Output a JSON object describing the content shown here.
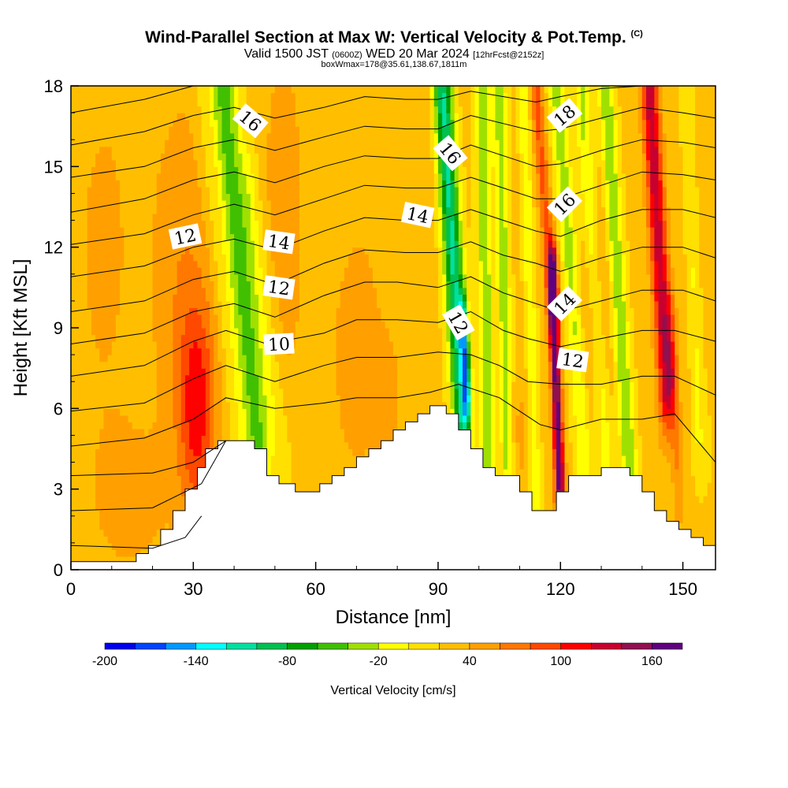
{
  "chart_data": {
    "type": "heatmap",
    "title": "Wind-Parallel Section at Max W: Vertical Velocity & Pot.Temp.",
    "title_mark": "(C)",
    "subtitle_main": "Valid 1500 JST",
    "subtitle_utc": "(0600Z)",
    "subtitle_date": "WED 20 Mar 2024",
    "subtitle_fcst": "[12hrFcst@2152z]",
    "boxline": "boxWmax=178@35.61,138.67,1811m",
    "xlabel": "Distance [nm]",
    "ylabel": "Height [Kft MSL]",
    "xlim": [
      0,
      158
    ],
    "ylim": [
      0,
      18
    ],
    "xticks": [
      0,
      30,
      60,
      90,
      120,
      150
    ],
    "yticks": [
      0,
      3,
      6,
      9,
      12,
      15,
      18
    ],
    "colorbar": {
      "label": "Vertical Velocity [cm/s]",
      "min": -200,
      "max": 180,
      "step": 20,
      "tick_values": [
        -200,
        -140,
        -80,
        -20,
        40,
        100,
        160
      ],
      "colors": [
        "#0000ee",
        "#0044ff",
        "#0099ff",
        "#00ffff",
        "#00e0a0",
        "#00c050",
        "#00a000",
        "#40c000",
        "#a0e000",
        "#ffff00",
        "#ffe000",
        "#ffbf00",
        "#ffa000",
        "#ff7800",
        "#ff4800",
        "#ff0000",
        "#c80030",
        "#901050",
        "#600080"
      ]
    },
    "terrain": [
      [
        0,
        0.3
      ],
      [
        16,
        0.3
      ],
      [
        16,
        0.6
      ],
      [
        19,
        0.6
      ],
      [
        19,
        0.9
      ],
      [
        22,
        0.9
      ],
      [
        22,
        1.5
      ],
      [
        25,
        1.5
      ],
      [
        25,
        2.2
      ],
      [
        28,
        2.2
      ],
      [
        28,
        3.0
      ],
      [
        31,
        3.0
      ],
      [
        31,
        3.8
      ],
      [
        33,
        3.8
      ],
      [
        33,
        4.5
      ],
      [
        36,
        4.5
      ],
      [
        36,
        4.8
      ],
      [
        45,
        4.8
      ],
      [
        45,
        4.5
      ],
      [
        48,
        4.5
      ],
      [
        48,
        3.5
      ],
      [
        51,
        3.5
      ],
      [
        51,
        3.2
      ],
      [
        55,
        3.2
      ],
      [
        55,
        2.9
      ],
      [
        61,
        2.9
      ],
      [
        61,
        3.2
      ],
      [
        64,
        3.2
      ],
      [
        64,
        3.5
      ],
      [
        67,
        3.5
      ],
      [
        67,
        3.8
      ],
      [
        70,
        3.8
      ],
      [
        70,
        4.2
      ],
      [
        73,
        4.2
      ],
      [
        73,
        4.5
      ],
      [
        76,
        4.5
      ],
      [
        76,
        4.8
      ],
      [
        79,
        4.8
      ],
      [
        79,
        5.2
      ],
      [
        82,
        5.2
      ],
      [
        82,
        5.5
      ],
      [
        85,
        5.5
      ],
      [
        85,
        5.8
      ],
      [
        88,
        5.8
      ],
      [
        88,
        6.1
      ],
      [
        92,
        6.1
      ],
      [
        92,
        5.8
      ],
      [
        95,
        5.8
      ],
      [
        95,
        5.2
      ],
      [
        98,
        5.2
      ],
      [
        98,
        4.5
      ],
      [
        101,
        4.5
      ],
      [
        101,
        3.8
      ],
      [
        104,
        3.8
      ],
      [
        104,
        3.5
      ],
      [
        110,
        3.5
      ],
      [
        110,
        2.9
      ],
      [
        113,
        2.9
      ],
      [
        113,
        2.2
      ],
      [
        119,
        2.2
      ],
      [
        119,
        2.9
      ],
      [
        122,
        2.9
      ],
      [
        122,
        3.5
      ],
      [
        130,
        3.5
      ],
      [
        130,
        3.8
      ],
      [
        137,
        3.8
      ],
      [
        137,
        3.5
      ],
      [
        140,
        3.5
      ],
      [
        140,
        2.9
      ],
      [
        143,
        2.9
      ],
      [
        143,
        2.2
      ],
      [
        146,
        2.2
      ],
      [
        146,
        1.8
      ],
      [
        149,
        1.8
      ],
      [
        149,
        1.5
      ],
      [
        152,
        1.5
      ],
      [
        152,
        1.2
      ],
      [
        155,
        1.2
      ],
      [
        155,
        0.9
      ],
      [
        158,
        0.9
      ]
    ],
    "w_features": [
      {
        "x": 31,
        "z": 6.0,
        "sx": 4.5,
        "sz": 4.0,
        "w": 80
      },
      {
        "x": 27,
        "z": 11.0,
        "sx": 7.0,
        "sz": 7.0,
        "w": 30
      },
      {
        "x": 8,
        "z": 12.0,
        "sx": 10.0,
        "sz": 9.0,
        "w": 18
      },
      {
        "x": 15,
        "z": 2.5,
        "sx": 10.0,
        "sz": 3.0,
        "w": 20
      },
      {
        "x": 52,
        "z": 13.0,
        "sx": 6.0,
        "sz": 8.0,
        "w": 25
      },
      {
        "x": 70,
        "z": 8.0,
        "sx": 8.0,
        "sz": 6.0,
        "w": 22
      },
      {
        "x": 82,
        "z": 16.0,
        "sx": 9.0,
        "sz": 4.0,
        "w": 12
      },
      {
        "x": 78,
        "z": 6.5,
        "sx": 4.0,
        "sz": 2.5,
        "w": 15
      },
      {
        "x": 110,
        "z": 5.0,
        "sx": 3.0,
        "sz": 2.5,
        "w": 20
      },
      {
        "x": 128,
        "z": 9.0,
        "sx": 4.0,
        "sz": 5.0,
        "w": 35
      },
      {
        "x": 156,
        "z": 4.0,
        "sx": 4.0,
        "sz": 4.0,
        "w": -5
      }
    ],
    "w_bands": [
      {
        "x0": 46,
        "z0": 4.5,
        "x1": 37,
        "z1": 18.2,
        "width": 3.0,
        "w": -75
      },
      {
        "x0": 41,
        "z0": 4.5,
        "x1": 31,
        "z1": 18.2,
        "width": 1.4,
        "w": -12
      },
      {
        "x0": 52,
        "z0": 4.0,
        "x1": 44,
        "z1": 14.0,
        "width": 2.2,
        "w": -25
      },
      {
        "x0": 96,
        "z0": 5.8,
        "x1": 91,
        "z1": 18.2,
        "width": 2.2,
        "w": -130
      },
      {
        "x0": 97,
        "z0": 6.5,
        "x1": 96,
        "z1": 9.5,
        "width": 0.9,
        "w": -100
      },
      {
        "x0": 102,
        "z0": 4.0,
        "x1": 101,
        "z1": 18.2,
        "width": 1.8,
        "w": -60
      },
      {
        "x0": 107,
        "z0": 4.0,
        "x1": 105,
        "z1": 18.2,
        "width": 1.6,
        "w": -55
      },
      {
        "x0": 114,
        "z0": 3.0,
        "x1": 111,
        "z1": 17.5,
        "width": 1.3,
        "w": -40
      },
      {
        "x0": 120,
        "z0": 2.5,
        "x1": 118,
        "z1": 11.0,
        "width": 1.2,
        "w": 150
      },
      {
        "x0": 118,
        "z0": 10.0,
        "x1": 114,
        "z1": 18.0,
        "width": 1.4,
        "w": 60
      },
      {
        "x0": 126,
        "z0": 4.0,
        "x1": 119,
        "z1": 18.2,
        "width": 2.0,
        "w": -55
      },
      {
        "x0": 131,
        "z0": 4.0,
        "x1": 125,
        "z1": 18.2,
        "width": 1.8,
        "w": -50
      },
      {
        "x0": 137,
        "z0": 3.5,
        "x1": 131,
        "z1": 18.2,
        "width": 1.8,
        "w": -65
      },
      {
        "x0": 146,
        "z0": 7.0,
        "x1": 142,
        "z1": 17.5,
        "width": 2.0,
        "w": 110
      },
      {
        "x0": 149,
        "z0": 3.0,
        "x1": 147,
        "z1": 9.0,
        "width": 1.4,
        "w": 35
      },
      {
        "x0": 154,
        "z0": 5.0,
        "x1": 151,
        "z1": 17.0,
        "width": 1.4,
        "w": -25
      }
    ],
    "theta_lines": [
      [
        [
          0,
          0.9
        ],
        [
          20,
          0.8
        ],
        [
          28,
          1.2
        ],
        [
          32,
          2.0
        ]
      ],
      [
        [
          0,
          2.2
        ],
        [
          20,
          2.3
        ],
        [
          32,
          3.2
        ],
        [
          38,
          4.8
        ]
      ],
      [
        [
          0,
          3.5
        ],
        [
          20,
          3.6
        ],
        [
          30,
          4.0
        ],
        [
          38,
          4.8
        ]
      ],
      [
        [
          0,
          4.6
        ],
        [
          18,
          4.9
        ],
        [
          30,
          5.6
        ],
        [
          38,
          6.4
        ],
        [
          50,
          6.0
        ],
        [
          62,
          6.2
        ],
        [
          70,
          6.4
        ],
        [
          80,
          6.4
        ],
        [
          88,
          6.6
        ],
        [
          95,
          6.9
        ],
        [
          105,
          6.4
        ],
        [
          115,
          5.4
        ],
        [
          120,
          5.2
        ],
        [
          130,
          5.6
        ],
        [
          140,
          5.6
        ],
        [
          148,
          5.8
        ],
        [
          158,
          4.0
        ]
      ],
      [
        [
          0,
          5.9
        ],
        [
          18,
          6.2
        ],
        [
          30,
          7.1
        ],
        [
          38,
          7.6
        ],
        [
          50,
          7.0
        ],
        [
          62,
          7.6
        ],
        [
          70,
          7.9
        ],
        [
          80,
          7.9
        ],
        [
          90,
          8.1
        ],
        [
          98,
          8.0
        ],
        [
          105,
          7.6
        ],
        [
          112,
          7.0
        ],
        [
          120,
          6.9
        ],
        [
          130,
          6.9
        ],
        [
          140,
          7.2
        ],
        [
          148,
          7.2
        ],
        [
          158,
          6.5
        ]
      ],
      [
        [
          0,
          7.2
        ],
        [
          18,
          7.6
        ],
        [
          30,
          8.5
        ],
        [
          38,
          8.9
        ],
        [
          48,
          8.4
        ],
        [
          62,
          8.8
        ],
        [
          70,
          9.3
        ],
        [
          80,
          9.3
        ],
        [
          90,
          9.2
        ],
        [
          98,
          9.6
        ],
        [
          106,
          8.9
        ],
        [
          112,
          8.6
        ],
        [
          120,
          8.3
        ],
        [
          130,
          8.6
        ],
        [
          140,
          8.9
        ],
        [
          148,
          8.9
        ],
        [
          158,
          8.5
        ]
      ],
      [
        [
          0,
          8.4
        ],
        [
          18,
          8.8
        ],
        [
          30,
          9.6
        ],
        [
          40,
          9.9
        ],
        [
          50,
          9.4
        ],
        [
          62,
          10.2
        ],
        [
          72,
          10.7
        ],
        [
          80,
          10.7
        ],
        [
          90,
          10.5
        ],
        [
          98,
          10.9
        ],
        [
          106,
          10.3
        ],
        [
          112,
          10.0
        ],
        [
          120,
          9.6
        ],
        [
          130,
          10.0
        ],
        [
          140,
          10.4
        ],
        [
          150,
          10.4
        ],
        [
          158,
          10.0
        ]
      ],
      [
        [
          0,
          9.6
        ],
        [
          18,
          10.0
        ],
        [
          30,
          10.8
        ],
        [
          40,
          11.1
        ],
        [
          50,
          10.6
        ],
        [
          62,
          11.4
        ],
        [
          72,
          11.9
        ],
        [
          82,
          11.8
        ],
        [
          90,
          11.8
        ],
        [
          98,
          12.2
        ],
        [
          106,
          11.7
        ],
        [
          114,
          11.4
        ],
        [
          120,
          11.1
        ],
        [
          130,
          11.6
        ],
        [
          140,
          12.0
        ],
        [
          150,
          12.0
        ],
        [
          158,
          11.6
        ]
      ],
      [
        [
          0,
          10.9
        ],
        [
          18,
          11.3
        ],
        [
          30,
          12.0
        ],
        [
          40,
          12.3
        ],
        [
          50,
          11.9
        ],
        [
          62,
          12.6
        ],
        [
          72,
          13.1
        ],
        [
          82,
          13.0
        ],
        [
          90,
          13.0
        ],
        [
          98,
          13.4
        ],
        [
          106,
          13.0
        ],
        [
          114,
          12.6
        ],
        [
          120,
          12.4
        ],
        [
          130,
          13.0
        ],
        [
          140,
          13.4
        ],
        [
          150,
          13.4
        ],
        [
          158,
          13.1
        ]
      ],
      [
        [
          0,
          12.1
        ],
        [
          18,
          12.5
        ],
        [
          30,
          13.2
        ],
        [
          40,
          13.6
        ],
        [
          50,
          13.2
        ],
        [
          62,
          13.8
        ],
        [
          72,
          14.3
        ],
        [
          82,
          14.2
        ],
        [
          90,
          14.2
        ],
        [
          98,
          14.6
        ],
        [
          106,
          14.2
        ],
        [
          114,
          13.8
        ],
        [
          120,
          13.8
        ],
        [
          130,
          14.3
        ],
        [
          140,
          14.8
        ],
        [
          150,
          14.7
        ],
        [
          158,
          14.5
        ]
      ],
      [
        [
          0,
          13.3
        ],
        [
          18,
          13.8
        ],
        [
          30,
          14.5
        ],
        [
          40,
          14.8
        ],
        [
          50,
          14.4
        ],
        [
          62,
          15.0
        ],
        [
          72,
          15.4
        ],
        [
          82,
          15.3
        ],
        [
          90,
          15.3
        ],
        [
          98,
          15.8
        ],
        [
          106,
          15.4
        ],
        [
          114,
          15.0
        ],
        [
          120,
          15.1
        ],
        [
          130,
          15.6
        ],
        [
          140,
          16.0
        ],
        [
          150,
          15.9
        ],
        [
          158,
          15.7
        ]
      ],
      [
        [
          0,
          14.6
        ],
        [
          18,
          15.0
        ],
        [
          30,
          15.7
        ],
        [
          40,
          16.0
        ],
        [
          50,
          15.6
        ],
        [
          62,
          16.1
        ],
        [
          72,
          16.5
        ],
        [
          82,
          16.4
        ],
        [
          90,
          16.4
        ],
        [
          98,
          16.9
        ],
        [
          106,
          16.6
        ],
        [
          114,
          16.3
        ],
        [
          120,
          16.4
        ],
        [
          130,
          16.8
        ],
        [
          140,
          17.2
        ],
        [
          150,
          17.0
        ],
        [
          158,
          16.8
        ]
      ],
      [
        [
          0,
          15.8
        ],
        [
          18,
          16.3
        ],
        [
          30,
          16.9
        ],
        [
          40,
          17.2
        ],
        [
          50,
          16.8
        ],
        [
          62,
          17.2
        ],
        [
          72,
          17.6
        ],
        [
          82,
          17.5
        ],
        [
          90,
          17.5
        ],
        [
          98,
          17.8
        ],
        [
          106,
          17.6
        ],
        [
          114,
          17.4
        ],
        [
          120,
          17.6
        ],
        [
          130,
          17.9
        ],
        [
          140,
          18.0
        ]
      ],
      [
        [
          0,
          17.0
        ],
        [
          18,
          17.5
        ],
        [
          30,
          18.0
        ]
      ]
    ],
    "contour_labels": [
      {
        "text": "16",
        "x": 44,
        "z": 16.7,
        "angle": 40
      },
      {
        "text": "12",
        "x": 28,
        "z": 12.4,
        "angle": -12
      },
      {
        "text": "14",
        "x": 51,
        "z": 12.2,
        "angle": 8
      },
      {
        "text": "12",
        "x": 51,
        "z": 10.5,
        "angle": 8
      },
      {
        "text": "10",
        "x": 51,
        "z": 8.4,
        "angle": -3
      },
      {
        "text": "14",
        "x": 85,
        "z": 13.2,
        "angle": 12
      },
      {
        "text": "16",
        "x": 93,
        "z": 15.5,
        "angle": 50
      },
      {
        "text": "12",
        "x": 95,
        "z": 9.2,
        "angle": 60
      },
      {
        "text": "18",
        "x": 121,
        "z": 16.9,
        "angle": -40
      },
      {
        "text": "16",
        "x": 121,
        "z": 13.6,
        "angle": -45
      },
      {
        "text": "14",
        "x": 121,
        "z": 9.9,
        "angle": -45
      },
      {
        "text": "12",
        "x": 123,
        "z": 7.8,
        "angle": 8
      }
    ]
  }
}
